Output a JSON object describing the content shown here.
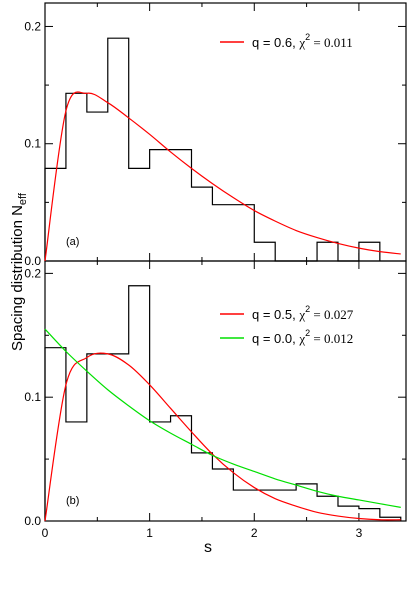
{
  "figure": {
    "ylabel_main": "Spacing distribution N",
    "ylabel_sub": "eff",
    "xlabel": "s"
  },
  "chart_data": [
    {
      "type": "line",
      "panel_label": "(a)",
      "xlabel": "s",
      "ylabel": "Spacing distribution N_eff",
      "xlim": [
        0,
        3.45
      ],
      "ylim": [
        0,
        0.22
      ],
      "x_ticks": [
        "0",
        "1",
        "2",
        "3"
      ],
      "y_ticks": [
        "0.0",
        "0.1",
        "0.2"
      ],
      "y_tick_values": [
        0,
        0.1,
        0.2
      ],
      "legend_position": "top-right",
      "histogram": {
        "bin_edges": [
          0,
          0.2,
          0.4,
          0.6,
          0.8,
          1.0,
          1.2,
          1.4,
          1.6,
          1.8,
          2.0,
          2.2,
          2.4,
          2.6,
          2.8,
          3.0,
          3.2
        ],
        "values": [
          0.079,
          0.143,
          0.127,
          0.19,
          0.079,
          0.095,
          0.095,
          0.063,
          0.048,
          0.048,
          0.016,
          0.0,
          0.0,
          0.016,
          0.0,
          0.016
        ]
      },
      "series": [
        {
          "name_q": "q = 0.6,",
          "name_chi": "χ",
          "chi_exp": "2",
          "chi_val": " = 0.011",
          "color": "#ff0000",
          "x": [
            0,
            0.2,
            0.4,
            0.6,
            0.8,
            1.0,
            1.2,
            1.4,
            1.6,
            1.8,
            2.0,
            2.2,
            2.4,
            2.6,
            2.8,
            3.0,
            3.2,
            3.4
          ],
          "y": [
            0.0,
            0.128,
            0.143,
            0.135,
            0.122,
            0.108,
            0.093,
            0.079,
            0.066,
            0.054,
            0.043,
            0.034,
            0.026,
            0.02,
            0.015,
            0.011,
            0.008,
            0.006
          ]
        }
      ]
    },
    {
      "type": "line",
      "panel_label": "(b)",
      "xlabel": "s",
      "ylabel": "Spacing distribution N_eff",
      "xlim": [
        0,
        3.45
      ],
      "ylim": [
        0,
        0.21
      ],
      "x_ticks": [
        "0",
        "1",
        "2",
        "3"
      ],
      "y_ticks": [
        "0.0",
        "0.1",
        "0.2"
      ],
      "y_tick_values": [
        0,
        0.1,
        0.2
      ],
      "legend_position": "top-right",
      "histogram": {
        "bin_edges": [
          0,
          0.2,
          0.4,
          0.6,
          0.8,
          1.0,
          1.2,
          1.4,
          1.6,
          1.8,
          2.0,
          2.2,
          2.4,
          2.6,
          2.8,
          3.0,
          3.2,
          3.4
        ],
        "values": [
          0.14,
          0.08,
          0.135,
          0.135,
          0.19,
          0.08,
          0.085,
          0.055,
          0.042,
          0.025,
          0.025,
          0.025,
          0.03,
          0.02,
          0.012,
          0.01,
          0.003
        ]
      },
      "series": [
        {
          "name_q": "q = 0.5,",
          "name_chi": "χ",
          "chi_exp": "2",
          "chi_val": " = 0.027",
          "color": "#ff0000",
          "x": [
            0,
            0.2,
            0.4,
            0.6,
            0.8,
            1.0,
            1.2,
            1.4,
            1.6,
            1.8,
            2.0,
            2.2,
            2.4,
            2.6,
            2.8,
            3.0,
            3.2,
            3.4
          ],
          "y": [
            0.0,
            0.11,
            0.132,
            0.135,
            0.126,
            0.11,
            0.091,
            0.072,
            0.054,
            0.039,
            0.027,
            0.018,
            0.012,
            0.007,
            0.004,
            0.002,
            0.001,
            0.001
          ]
        },
        {
          "name_q": "q = 0.0,",
          "name_chi": "χ",
          "chi_exp": "2",
          "chi_val": " = 0.012",
          "color": "#00e000",
          "x": [
            0,
            0.2,
            0.4,
            0.6,
            0.8,
            1.0,
            1.2,
            1.4,
            1.6,
            1.8,
            2.0,
            2.2,
            2.4,
            2.6,
            2.8,
            3.0,
            3.2,
            3.4
          ],
          "y": [
            0.155,
            0.137,
            0.121,
            0.106,
            0.093,
            0.081,
            0.071,
            0.062,
            0.053,
            0.046,
            0.04,
            0.034,
            0.029,
            0.024,
            0.02,
            0.017,
            0.014,
            0.011
          ]
        }
      ]
    }
  ]
}
